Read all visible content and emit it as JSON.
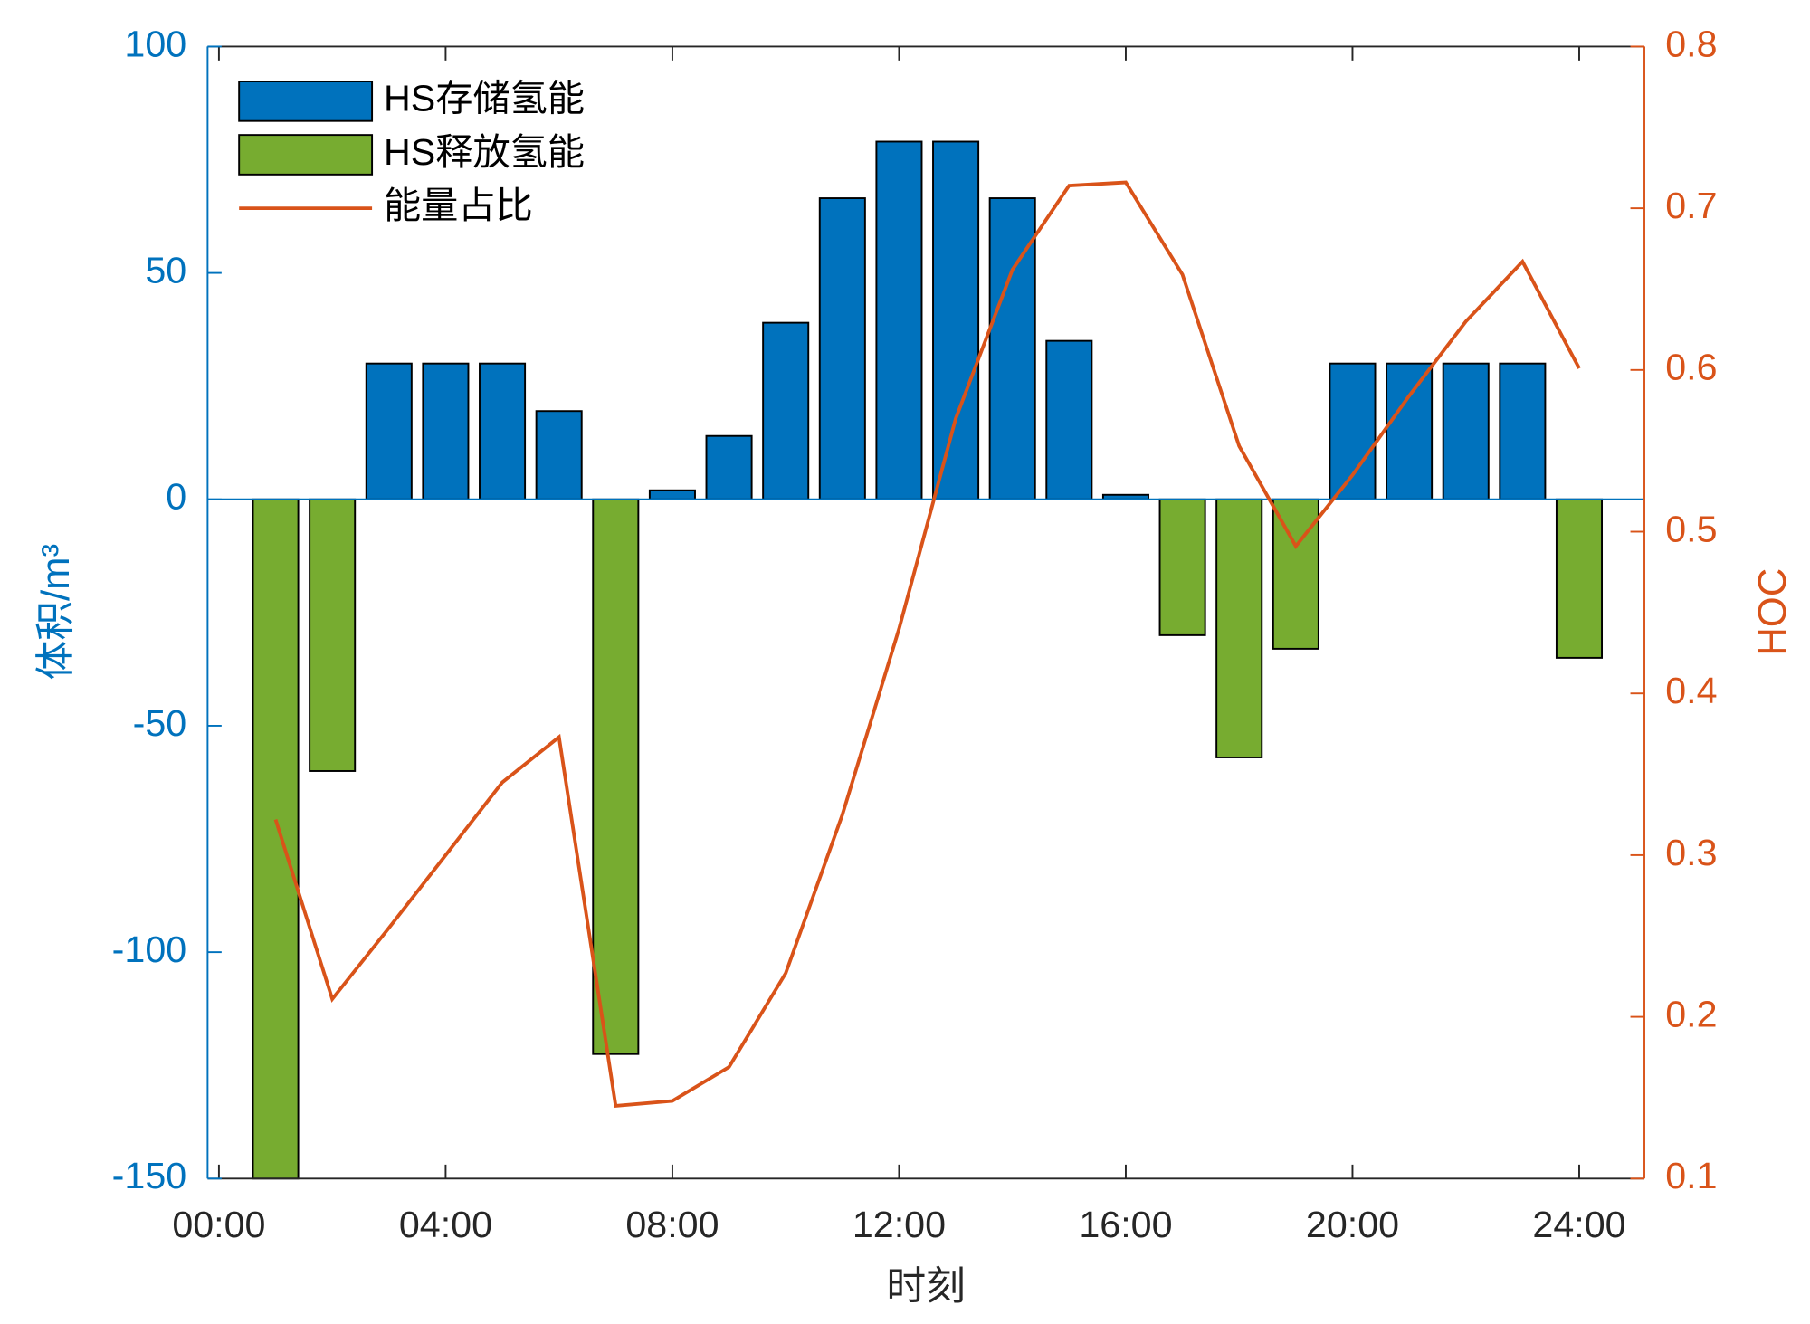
{
  "chart_data": {
    "type": "bar-line",
    "xlabel": "时刻",
    "ylabel": "体积/m³",
    "y2label": "HOC",
    "x": [
      1,
      2,
      3,
      4,
      5,
      6,
      7,
      8,
      9,
      10,
      11,
      12,
      13,
      14,
      15,
      16,
      17,
      18,
      19,
      20,
      21,
      22,
      23,
      24
    ],
    "xlim": [
      -0.2,
      25.15
    ],
    "xticks": [
      {
        "value": 0,
        "label": "00:00"
      },
      {
        "value": 4,
        "label": "04:00"
      },
      {
        "value": 8,
        "label": "08:00"
      },
      {
        "value": 12,
        "label": "12:00"
      },
      {
        "value": 16,
        "label": "16:00"
      },
      {
        "value": 20,
        "label": "20:00"
      },
      {
        "value": 24,
        "label": "24:00"
      }
    ],
    "ylim": [
      -150,
      100
    ],
    "yticks": [
      -150,
      -100,
      -50,
      0,
      50,
      100
    ],
    "y2lim": [
      0.1,
      0.8
    ],
    "y2ticks": [
      0.1,
      0.2,
      0.3,
      0.4,
      0.5,
      0.6,
      0.7,
      0.8
    ],
    "legend": "upper left",
    "series": [
      {
        "name": "HS存储氢能",
        "color": "#0072bd",
        "kind": "bar",
        "values": [
          null,
          null,
          30,
          30,
          30,
          19.5,
          null,
          2,
          14,
          39,
          66.5,
          79,
          79,
          66.5,
          35,
          1,
          null,
          null,
          null,
          30,
          30,
          30,
          30,
          null
        ]
      },
      {
        "name": "HS释放氢能",
        "color": "#77ac30",
        "kind": "bar",
        "values": [
          -150,
          -60,
          null,
          null,
          null,
          null,
          -122.5,
          null,
          null,
          null,
          null,
          null,
          null,
          null,
          null,
          null,
          -30,
          -57,
          -33,
          null,
          null,
          null,
          null,
          -35
        ]
      },
      {
        "name": "能量占比",
        "color": "#d95319",
        "kind": "line",
        "axis": "y2",
        "values": [
          0.322,
          0.211,
          0.255,
          0.3,
          0.345,
          0.373,
          0.145,
          0.148,
          0.169,
          0.227,
          0.325,
          0.44,
          0.57,
          0.662,
          0.714,
          0.716,
          0.659,
          0.553,
          0.491,
          0.535,
          0.584,
          0.63,
          0.667,
          0.601
        ]
      }
    ]
  }
}
